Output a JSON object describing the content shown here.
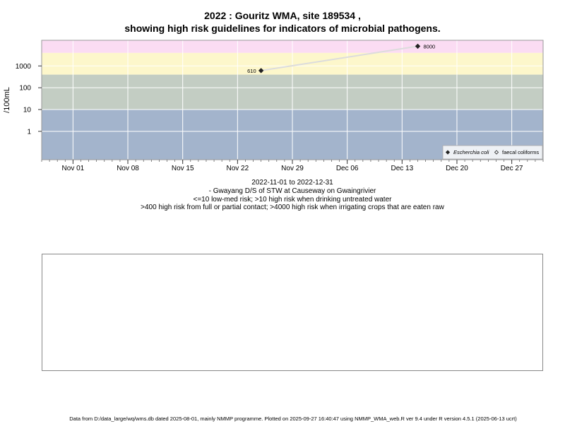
{
  "title_line1": "2022 : Gouritz WMA, site 189534 ,",
  "title_line2": "showing high risk guidelines for indicators of microbial pathogens.",
  "captions": [
    "2022-11-01 to 2022-12-31",
    "- Gwayang D/S of STW at Causeway on Gwaingrivier",
    "<=10 low-med risk; >10 high risk when drinking untreated water",
    ">400 high risk from full or partial contact; >4000 high risk when irrigating crops that are eaten raw"
  ],
  "footer": "Data from D:/data_large/wq/wms.db dated 2025-08-01, mainly NMMP programme. Plotted on 2025-09-27 16:40:47 using NMMP_WMA_web.R ver 9.4 under R version 4.5.1 (2025-06-13 ucrt)",
  "chart_data": {
    "type": "scatter",
    "ylabel": "/100mL",
    "y_scale": "log",
    "ylim": [
      0.05,
      15000
    ],
    "xlim": [
      "2022-10-28",
      "2022-12-31"
    ],
    "y_ticks": [
      {
        "value": 1,
        "label": "1"
      },
      {
        "value": 10,
        "label": "10"
      },
      {
        "value": 100,
        "label": "100"
      },
      {
        "value": 1000,
        "label": "1000"
      }
    ],
    "x_ticks": [
      {
        "date": "2022-11-01",
        "label": "Nov 01"
      },
      {
        "date": "2022-11-08",
        "label": "Nov 08"
      },
      {
        "date": "2022-11-15",
        "label": "Nov 15"
      },
      {
        "date": "2022-11-22",
        "label": "Nov 22"
      },
      {
        "date": "2022-11-29",
        "label": "Nov 29"
      },
      {
        "date": "2022-12-06",
        "label": "Dec 06"
      },
      {
        "date": "2022-12-13",
        "label": "Dec 13"
      },
      {
        "date": "2022-12-20",
        "label": "Dec 20"
      },
      {
        "date": "2022-12-27",
        "label": "Dec 27"
      }
    ],
    "risk_bands": [
      {
        "from": 0.05,
        "to": 10,
        "color": "#a3b4cc"
      },
      {
        "from": 10,
        "to": 400,
        "color": "#c3cdc3"
      },
      {
        "from": 400,
        "to": 4000,
        "color": "#fdf7cb"
      },
      {
        "from": 4000,
        "to": 15000,
        "color": "#fbdcf3"
      }
    ],
    "series": [
      {
        "name": "Escherchia coli",
        "marker": "filled-diamond",
        "color": "#222222",
        "line_color": "#dcdcdc",
        "points": [
          {
            "x": "2022-11-25",
            "y": 610,
            "label": "610"
          },
          {
            "x": "2022-12-15",
            "y": 8000,
            "label": "8000"
          }
        ]
      },
      {
        "name": "faecal coliforms",
        "marker": "open-diamond",
        "color": "#222222",
        "points": []
      }
    ],
    "legend_position": "bottom-right",
    "grid": true
  }
}
